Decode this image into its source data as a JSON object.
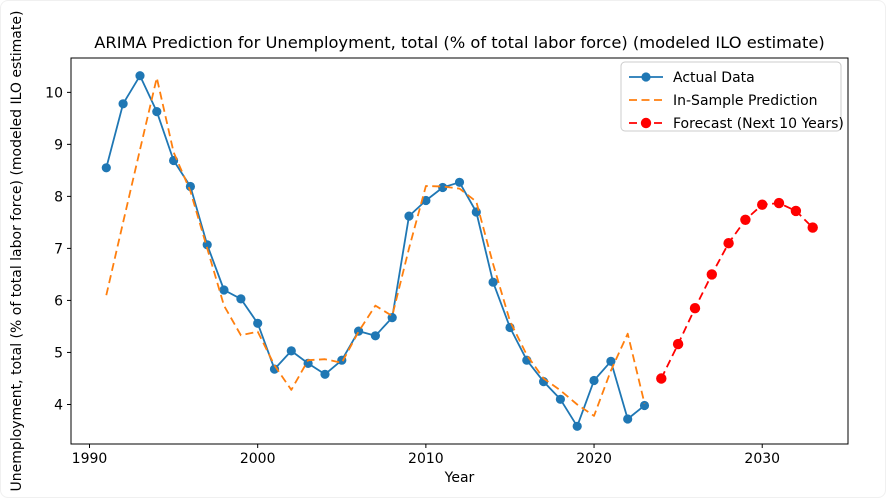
{
  "chart_data": {
    "type": "line",
    "title": "ARIMA Prediction for Unemployment, total (% of total labor force) (modeled ILO estimate)",
    "xlabel": "Year",
    "ylabel": "Unemployment, total (% of total labor force) (modeled ILO estimate)",
    "xlim": [
      1988.9,
      2035.1
    ],
    "ylim": [
      3.24,
      10.66
    ],
    "x_ticks": [
      1990,
      2000,
      2010,
      2020,
      2030
    ],
    "y_ticks": [
      4,
      5,
      6,
      7,
      8,
      9,
      10
    ],
    "grid": false,
    "legend_position": "upper right",
    "series": [
      {
        "name": "Actual Data",
        "color": "#1f77b4",
        "style": "solid",
        "marker": "circle",
        "x": [
          1991,
          1992,
          1993,
          1994,
          1995,
          1996,
          1997,
          1998,
          1999,
          2000,
          2001,
          2002,
          2003,
          2004,
          2005,
          2006,
          2007,
          2008,
          2009,
          2010,
          2011,
          2012,
          2013,
          2014,
          2015,
          2016,
          2017,
          2018,
          2019,
          2020,
          2021,
          2022,
          2023
        ],
        "values": [
          8.55,
          9.78,
          10.32,
          9.63,
          8.69,
          8.19,
          7.07,
          6.2,
          6.03,
          5.56,
          4.68,
          5.03,
          4.79,
          4.58,
          4.85,
          5.41,
          5.32,
          5.67,
          7.62,
          7.92,
          8.17,
          8.27,
          7.7,
          6.35,
          5.48,
          4.85,
          4.44,
          4.1,
          3.58,
          4.46,
          4.83,
          3.72,
          3.98
        ]
      },
      {
        "name": "In-Sample Prediction",
        "color": "#ff7f0e",
        "style": "dashed",
        "marker": "none",
        "x": [
          1991,
          1992,
          1993,
          1994,
          1995,
          1996,
          1997,
          1998,
          1999,
          2000,
          2001,
          2002,
          2003,
          2004,
          2005,
          2006,
          2007,
          2008,
          2009,
          2010,
          2011,
          2012,
          2013,
          2014,
          2015,
          2016,
          2017,
          2018,
          2019,
          2020,
          2021,
          2022,
          2023
        ],
        "values": [
          6.1,
          7.5,
          8.9,
          10.28,
          8.85,
          8.1,
          7.0,
          5.9,
          5.33,
          5.4,
          4.75,
          4.28,
          4.85,
          4.87,
          4.8,
          5.4,
          5.9,
          5.7,
          7.0,
          8.2,
          8.19,
          8.15,
          7.9,
          6.7,
          5.6,
          4.95,
          4.5,
          4.27,
          4.0,
          3.78,
          4.65,
          5.36,
          4.02
        ]
      },
      {
        "name": "Forecast (Next 10 Years)",
        "color": "#ff0000",
        "style": "dashed",
        "marker": "circle",
        "x": [
          2024,
          2025,
          2026,
          2027,
          2028,
          2029,
          2030,
          2031,
          2032,
          2033
        ],
        "values": [
          4.5,
          5.16,
          5.85,
          6.5,
          7.1,
          7.55,
          7.84,
          7.87,
          7.72,
          7.4
        ]
      }
    ]
  },
  "colors": {
    "actual": "#1f77b4",
    "in_sample": "#ff7f0e",
    "forecast": "#ff0000",
    "spine": "#000000",
    "legend_border": "#cccccc",
    "background": "#ffffff"
  }
}
